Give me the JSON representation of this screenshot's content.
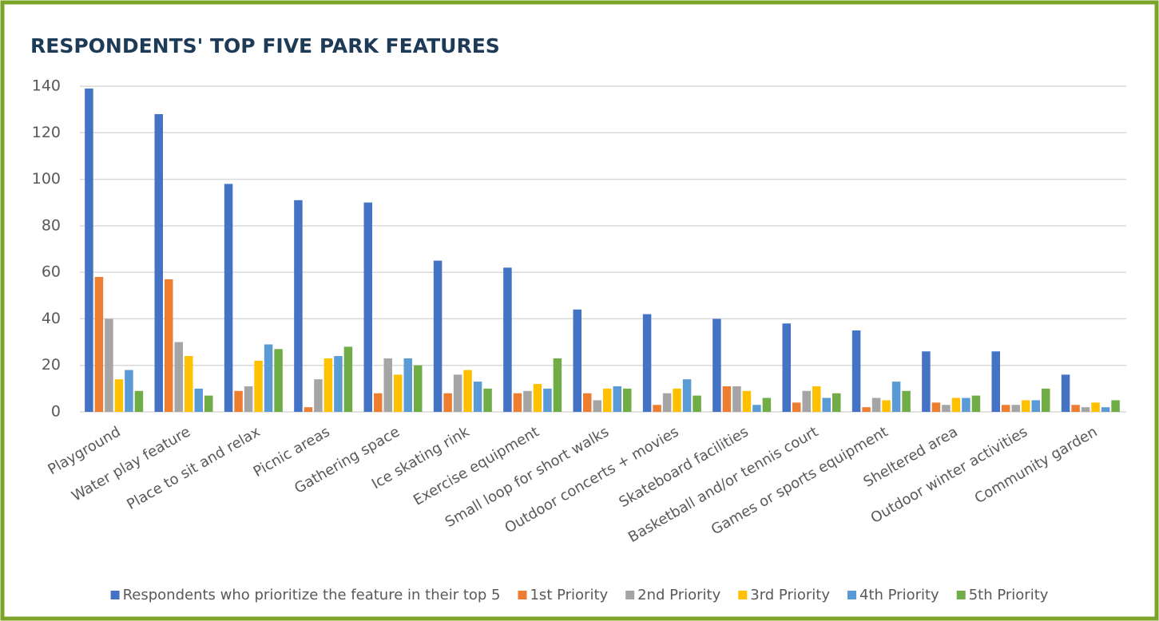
{
  "chart_data": {
    "type": "bar",
    "title": "RESPONDENTS' TOP FIVE PARK FEATURES",
    "categories": [
      "Playground",
      "Water play feature",
      "Place to sit and relax",
      "Picnic areas",
      "Gathering space",
      "Ice skating rink",
      "Exercise equipment",
      "Small loop for short walks",
      "Outdoor concerts + movies",
      "Skateboard facilities",
      "Basketball and/or tennis court",
      "Games or sports equipment",
      "Sheltered area",
      "Outdoor winter activities",
      "Community garden"
    ],
    "series": [
      {
        "name": "Respondents who prioritize the feature in their top 5",
        "color": "#4472c4",
        "values": [
          139,
          128,
          98,
          91,
          90,
          65,
          62,
          44,
          42,
          40,
          38,
          35,
          26,
          26,
          16
        ]
      },
      {
        "name": "1st Priority",
        "color": "#ed7d31",
        "values": [
          58,
          57,
          9,
          2,
          8,
          8,
          8,
          8,
          3,
          11,
          4,
          2,
          4,
          3,
          3
        ]
      },
      {
        "name": "2nd Priority",
        "color": "#a5a5a5",
        "values": [
          40,
          30,
          11,
          14,
          23,
          16,
          9,
          5,
          8,
          11,
          9,
          6,
          3,
          3,
          2
        ]
      },
      {
        "name": "3rd Priority",
        "color": "#ffc000",
        "values": [
          14,
          24,
          22,
          23,
          16,
          18,
          12,
          10,
          10,
          9,
          11,
          5,
          6,
          5,
          4
        ]
      },
      {
        "name": "4th Priority",
        "color": "#5b9bd5",
        "values": [
          18,
          10,
          29,
          24,
          23,
          13,
          10,
          11,
          14,
          3,
          6,
          13,
          6,
          5,
          2
        ]
      },
      {
        "name": "5th Priority",
        "color": "#70ad47",
        "values": [
          9,
          7,
          27,
          28,
          20,
          10,
          23,
          10,
          7,
          6,
          8,
          9,
          7,
          10,
          5
        ]
      }
    ],
    "ylim": [
      0,
      140
    ],
    "yticks": [
      0,
      20,
      40,
      60,
      80,
      100,
      120,
      140
    ],
    "grid": true,
    "legend": "bottom"
  }
}
